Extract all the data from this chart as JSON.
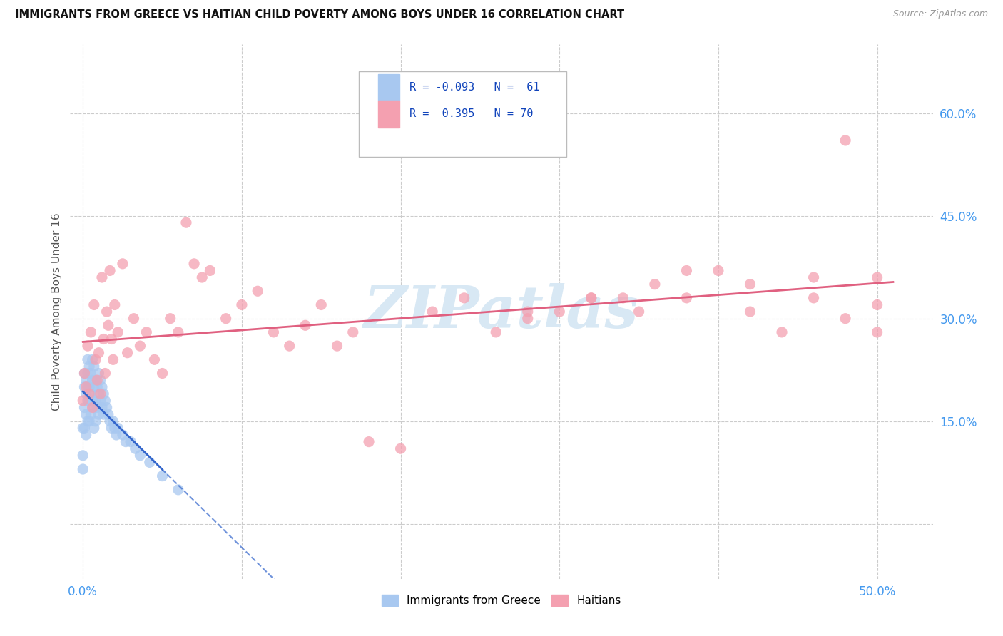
{
  "title": "IMMIGRANTS FROM GREECE VS HAITIAN CHILD POVERTY AMONG BOYS UNDER 16 CORRELATION CHART",
  "source": "Source: ZipAtlas.com",
  "ylabel": "Child Poverty Among Boys Under 16",
  "x_tick_vals": [
    0.0,
    0.1,
    0.2,
    0.3,
    0.4,
    0.5
  ],
  "x_tick_labels": [
    "0.0%",
    "",
    "",
    "",
    "",
    "50.0%"
  ],
  "y_tick_vals": [
    0.0,
    0.15,
    0.3,
    0.45,
    0.6
  ],
  "y_tick_labels": [
    "",
    "15.0%",
    "30.0%",
    "45.0%",
    "60.0%"
  ],
  "xlim": [
    -0.008,
    0.535
  ],
  "ylim": [
    -0.08,
    0.7
  ],
  "legend_label1": "Immigrants from Greece",
  "legend_label2": "Haitians",
  "color_greece": "#a8c8f0",
  "color_haiti": "#f4a0b0",
  "color_greece_line": "#3366cc",
  "color_haiti_line": "#e06080",
  "color_axis_labels": "#4499ee",
  "watermark_color": "#d8e8f4",
  "greece_x": [
    0.0,
    0.0,
    0.0,
    0.001,
    0.001,
    0.001,
    0.001,
    0.002,
    0.002,
    0.002,
    0.002,
    0.003,
    0.003,
    0.003,
    0.003,
    0.003,
    0.004,
    0.004,
    0.004,
    0.004,
    0.005,
    0.005,
    0.005,
    0.006,
    0.006,
    0.006,
    0.007,
    0.007,
    0.007,
    0.007,
    0.008,
    0.008,
    0.008,
    0.009,
    0.009,
    0.01,
    0.01,
    0.01,
    0.011,
    0.011,
    0.012,
    0.012,
    0.013,
    0.013,
    0.014,
    0.015,
    0.016,
    0.017,
    0.018,
    0.019,
    0.02,
    0.021,
    0.022,
    0.025,
    0.027,
    0.03,
    0.033,
    0.036,
    0.042,
    0.05,
    0.06
  ],
  "greece_y": [
    0.14,
    0.1,
    0.08,
    0.22,
    0.2,
    0.17,
    0.14,
    0.21,
    0.19,
    0.16,
    0.13,
    0.24,
    0.22,
    0.2,
    0.18,
    0.15,
    0.23,
    0.2,
    0.18,
    0.15,
    0.22,
    0.19,
    0.16,
    0.24,
    0.21,
    0.18,
    0.23,
    0.2,
    0.17,
    0.14,
    0.21,
    0.18,
    0.15,
    0.2,
    0.17,
    0.22,
    0.19,
    0.16,
    0.21,
    0.18,
    0.2,
    0.17,
    0.19,
    0.16,
    0.18,
    0.17,
    0.16,
    0.15,
    0.14,
    0.15,
    0.14,
    0.13,
    0.14,
    0.13,
    0.12,
    0.12,
    0.11,
    0.1,
    0.09,
    0.07,
    0.05
  ],
  "haiti_x": [
    0.0,
    0.001,
    0.002,
    0.003,
    0.004,
    0.005,
    0.006,
    0.007,
    0.008,
    0.009,
    0.01,
    0.011,
    0.012,
    0.013,
    0.014,
    0.015,
    0.016,
    0.017,
    0.018,
    0.019,
    0.02,
    0.022,
    0.025,
    0.028,
    0.032,
    0.036,
    0.04,
    0.045,
    0.05,
    0.055,
    0.06,
    0.065,
    0.07,
    0.075,
    0.08,
    0.09,
    0.1,
    0.11,
    0.12,
    0.13,
    0.14,
    0.15,
    0.16,
    0.17,
    0.18,
    0.2,
    0.22,
    0.24,
    0.26,
    0.28,
    0.3,
    0.32,
    0.34,
    0.36,
    0.38,
    0.4,
    0.42,
    0.44,
    0.46,
    0.48,
    0.5,
    0.5,
    0.5,
    0.48,
    0.46,
    0.42,
    0.38,
    0.35,
    0.32,
    0.28
  ],
  "haiti_y": [
    0.18,
    0.22,
    0.2,
    0.26,
    0.19,
    0.28,
    0.17,
    0.32,
    0.24,
    0.21,
    0.25,
    0.19,
    0.36,
    0.27,
    0.22,
    0.31,
    0.29,
    0.37,
    0.27,
    0.24,
    0.32,
    0.28,
    0.38,
    0.25,
    0.3,
    0.26,
    0.28,
    0.24,
    0.22,
    0.3,
    0.28,
    0.44,
    0.38,
    0.36,
    0.37,
    0.3,
    0.32,
    0.34,
    0.28,
    0.26,
    0.29,
    0.32,
    0.26,
    0.28,
    0.12,
    0.11,
    0.31,
    0.33,
    0.28,
    0.31,
    0.31,
    0.33,
    0.33,
    0.35,
    0.37,
    0.37,
    0.31,
    0.28,
    0.36,
    0.56,
    0.28,
    0.36,
    0.32,
    0.3,
    0.33,
    0.35,
    0.33,
    0.31,
    0.33,
    0.3
  ]
}
